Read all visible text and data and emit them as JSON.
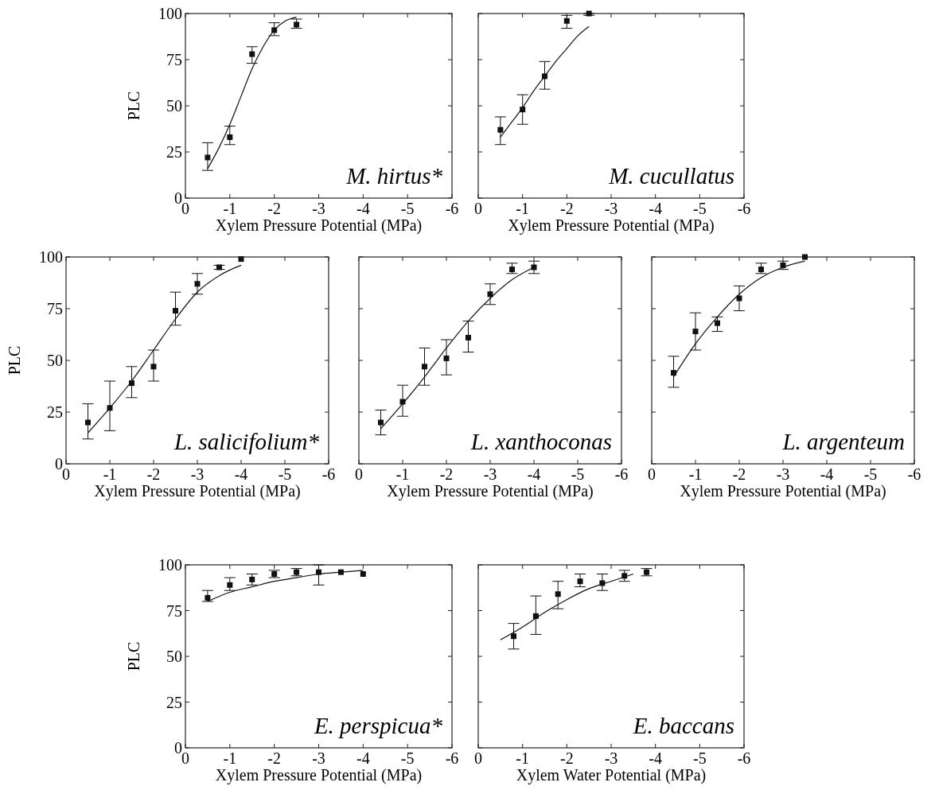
{
  "chart_data": [
    {
      "type": "scatter",
      "ylabel": "PLC",
      "xlabel": "Xylem Pressure Potential (MPa)",
      "annotations": [
        "M. hirtus*"
      ],
      "xlim": [
        0,
        -6
      ],
      "xticks": [
        0,
        -1,
        -2,
        -3,
        -4,
        -5,
        -6
      ],
      "ylim": [
        0,
        100
      ],
      "yticks": [
        0,
        25,
        50,
        75,
        100
      ],
      "series": [
        {
          "type": "scatter",
          "marker": "square",
          "color": "#111111",
          "x": [
            -0.5,
            -1,
            -1.5,
            -2,
            -2.5
          ],
          "values": [
            22,
            33,
            78,
            91,
            94
          ],
          "errors": [
            [
              15,
              30
            ],
            [
              29,
              39
            ],
            [
              73,
              82
            ],
            [
              88,
              95
            ],
            [
              92,
              97
            ]
          ]
        },
        {
          "type": "line",
          "marker": "none",
          "color": "#111111",
          "x": [
            -0.5,
            -0.75,
            -1,
            -1.25,
            -1.5,
            -1.75,
            -2,
            -2.25,
            -2.5
          ],
          "values": [
            16,
            27,
            40,
            55,
            70,
            82,
            91,
            96,
            98
          ]
        }
      ]
    },
    {
      "type": "scatter",
      "xlabel": "Xylem Pressure Potential (MPa)",
      "annotations": [
        "M. cucullatus"
      ],
      "tick_labels": "x",
      "xlim": [
        0,
        -6
      ],
      "xticks": [
        0,
        -1,
        -2,
        -3,
        -4,
        -5,
        -6
      ],
      "ylim": [
        0,
        100
      ],
      "yticks": [
        0,
        25,
        50,
        75,
        100
      ],
      "series": [
        {
          "type": "scatter",
          "marker": "square",
          "color": "#111111",
          "x": [
            -0.5,
            -1,
            -1.5,
            -2,
            -2.5
          ],
          "values": [
            37,
            48,
            66,
            96,
            100
          ],
          "errors": [
            [
              29,
              44
            ],
            [
              40,
              56
            ],
            [
              59,
              74
            ],
            [
              92,
              99
            ],
            [
              99,
              100
            ]
          ]
        },
        {
          "type": "line",
          "marker": "none",
          "color": "#111111",
          "x": [
            -0.5,
            -0.75,
            -1,
            -1.25,
            -1.5,
            -1.75,
            -2,
            -2.25,
            -2.5
          ],
          "values": [
            33,
            41,
            49,
            58,
            66,
            74,
            81,
            88,
            93
          ]
        }
      ]
    },
    {
      "type": "scatter",
      "ylabel": "PLC",
      "xlabel": "Xylem Pressure Potential (MPa)",
      "annotations": [
        "L. salicifolium*"
      ],
      "xlim": [
        0,
        -6
      ],
      "xticks": [
        0,
        -1,
        -2,
        -3,
        -4,
        -5,
        -6
      ],
      "ylim": [
        0,
        100
      ],
      "yticks": [
        0,
        25,
        50,
        75,
        100
      ],
      "series": [
        {
          "type": "scatter",
          "marker": "square",
          "color": "#111111",
          "x": [
            -0.5,
            -1,
            -1.5,
            -2,
            -2.5,
            -3,
            -3.5,
            -4
          ],
          "values": [
            20,
            27,
            39,
            47,
            74,
            87,
            95,
            99
          ],
          "errors": [
            [
              12,
              29
            ],
            [
              16,
              40
            ],
            [
              32,
              47
            ],
            [
              40,
              55
            ],
            [
              67,
              83
            ],
            [
              82,
              92
            ],
            [
              94,
              96
            ],
            null
          ]
        },
        {
          "type": "line",
          "marker": "none",
          "color": "#111111",
          "x": [
            -0.5,
            -1,
            -1.5,
            -2,
            -2.5,
            -3,
            -3.5,
            -4
          ],
          "values": [
            15,
            27,
            40,
            55,
            70,
            83,
            91,
            96
          ]
        }
      ]
    },
    {
      "type": "scatter",
      "xlabel": "Xylem Pressure Potential (MPa)",
      "annotations": [
        "L. xanthoconas"
      ],
      "tick_labels": "x",
      "xlim": [
        0,
        -6
      ],
      "xticks": [
        0,
        -1,
        -2,
        -3,
        -4,
        -5,
        -6
      ],
      "ylim": [
        0,
        100
      ],
      "yticks": [
        0,
        25,
        50,
        75,
        100
      ],
      "series": [
        {
          "type": "scatter",
          "marker": "square",
          "color": "#111111",
          "x": [
            -0.5,
            -1,
            -1.5,
            -2,
            -2.5,
            -3,
            -3.5,
            -4
          ],
          "values": [
            20,
            30,
            47,
            51,
            61,
            82,
            94,
            95
          ],
          "errors": [
            [
              14,
              26
            ],
            [
              23,
              38
            ],
            [
              38,
              56
            ],
            [
              43,
              60
            ],
            [
              54,
              69
            ],
            [
              77,
              87
            ],
            [
              92,
              97
            ],
            [
              92,
              98
            ]
          ]
        },
        {
          "type": "line",
          "marker": "none",
          "color": "#111111",
          "x": [
            -0.5,
            -1,
            -1.5,
            -2,
            -2.5,
            -3,
            -3.5,
            -4
          ],
          "values": [
            17,
            29,
            42,
            56,
            69,
            80,
            89,
            95
          ]
        }
      ]
    },
    {
      "type": "scatter",
      "xlabel": "Xylem Pressure Potential (MPa)",
      "annotations": [
        "L. argenteum"
      ],
      "tick_labels": "x",
      "xlim": [
        0,
        -6
      ],
      "xticks": [
        0,
        -1,
        -2,
        -3,
        -4,
        -5,
        -6
      ],
      "ylim": [
        0,
        100
      ],
      "yticks": [
        0,
        25,
        50,
        75,
        100
      ],
      "series": [
        {
          "type": "scatter",
          "marker": "square",
          "color": "#111111",
          "x": [
            -0.5,
            -1,
            -1.5,
            -2,
            -2.5,
            -3,
            -3.5
          ],
          "values": [
            44,
            64,
            68,
            80,
            94,
            96,
            100
          ],
          "errors": [
            [
              37,
              52
            ],
            [
              55,
              73
            ],
            [
              64,
              71
            ],
            [
              74,
              86
            ],
            [
              92,
              97
            ],
            [
              94,
              98
            ],
            null
          ]
        },
        {
          "type": "line",
          "marker": "none",
          "color": "#111111",
          "x": [
            -0.5,
            -1,
            -1.5,
            -2,
            -2.5,
            -3,
            -3.5
          ],
          "values": [
            42,
            58,
            71,
            82,
            90,
            95,
            98
          ]
        }
      ]
    },
    {
      "type": "scatter",
      "ylabel": "PLC",
      "xlabel": "Xylem Pressure Potential (MPa)",
      "annotations": [
        "E. perspicua*"
      ],
      "xlim": [
        0,
        -6
      ],
      "xticks": [
        0,
        -1,
        -2,
        -3,
        -4,
        -5,
        -6
      ],
      "ylim": [
        0,
        100
      ],
      "yticks": [
        0,
        25,
        50,
        75,
        100
      ],
      "series": [
        {
          "type": "scatter",
          "marker": "square",
          "color": "#111111",
          "x": [
            -0.5,
            -1,
            -1.5,
            -2,
            -2.5,
            -3,
            -3.5,
            -4
          ],
          "values": [
            82,
            89,
            92,
            95,
            96,
            96,
            96,
            95
          ],
          "errors": [
            [
              80,
              86
            ],
            [
              86,
              93
            ],
            [
              89,
              95
            ],
            [
              93,
              97
            ],
            [
              94,
              98
            ],
            [
              89,
              100
            ],
            null,
            null
          ]
        },
        {
          "type": "line",
          "marker": "none",
          "color": "#111111",
          "x": [
            -0.5,
            -1,
            -1.5,
            -2,
            -2.5,
            -3,
            -3.5,
            -4
          ],
          "values": [
            80,
            85,
            88,
            91,
            93,
            95,
            96,
            97
          ]
        }
      ]
    },
    {
      "type": "scatter",
      "xlabel": "Xylem Water Potential (MPa)",
      "annotations": [
        "E. baccans"
      ],
      "tick_labels": "x",
      "xlim": [
        0,
        -6
      ],
      "xticks": [
        0,
        -1,
        -2,
        -3,
        -4,
        -5,
        -6
      ],
      "ylim": [
        0,
        100
      ],
      "yticks": [
        0,
        25,
        50,
        75,
        100
      ],
      "series": [
        {
          "type": "scatter",
          "marker": "square",
          "color": "#111111",
          "x": [
            -0.8,
            -1.3,
            -1.8,
            -2.3,
            -2.8,
            -3.3,
            -3.8
          ],
          "values": [
            61,
            72,
            84,
            91,
            90,
            94,
            96
          ],
          "errors": [
            [
              54,
              68
            ],
            [
              62,
              83
            ],
            [
              76,
              91
            ],
            [
              88,
              95
            ],
            [
              86,
              95
            ],
            [
              91,
              97
            ],
            [
              94,
              98
            ]
          ]
        },
        {
          "type": "line",
          "marker": "none",
          "color": "#111111",
          "x": [
            -0.5,
            -1,
            -1.5,
            -2,
            -2.5,
            -3,
            -3.5
          ],
          "values": [
            59,
            66,
            74,
            81,
            87,
            91,
            95
          ]
        }
      ]
    }
  ]
}
